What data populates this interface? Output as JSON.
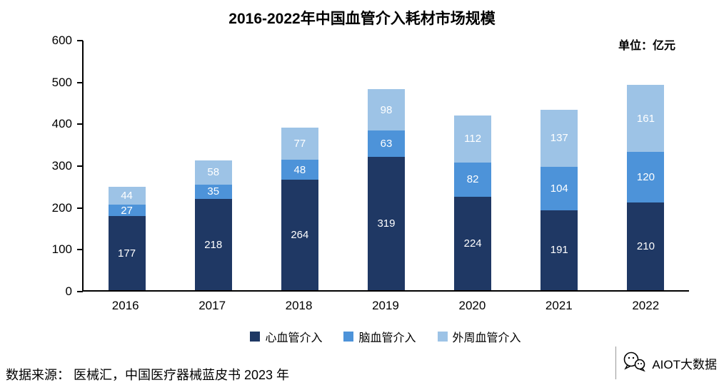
{
  "title": "2016-2022年中国血管介入耗材市场规模",
  "unit_label": "单位：亿元",
  "source": "数据来源： 医械汇，中国医疗器械蓝皮书 2023 年",
  "watermark": "AIOT大数据",
  "chart_data": {
    "type": "bar",
    "stacked": true,
    "title": "2016-2022年中国血管介入耗材市场规模",
    "unit": "亿元",
    "categories": [
      "2016",
      "2017",
      "2018",
      "2019",
      "2020",
      "2021",
      "2022"
    ],
    "series": [
      {
        "name": "心血管介入",
        "color": "#1F3864",
        "values": [
          177,
          218,
          264,
          319,
          224,
          191,
          210
        ]
      },
      {
        "name": "脑血管介入",
        "color": "#4D93D9",
        "values": [
          27,
          35,
          48,
          63,
          82,
          104,
          120
        ]
      },
      {
        "name": "外周血管介入",
        "color": "#9DC3E6",
        "values": [
          44,
          58,
          77,
          98,
          112,
          137,
          161
        ]
      }
    ],
    "ylim": [
      0,
      600
    ],
    "ytick_step": 100,
    "grid": false,
    "legend_position": "bottom"
  }
}
